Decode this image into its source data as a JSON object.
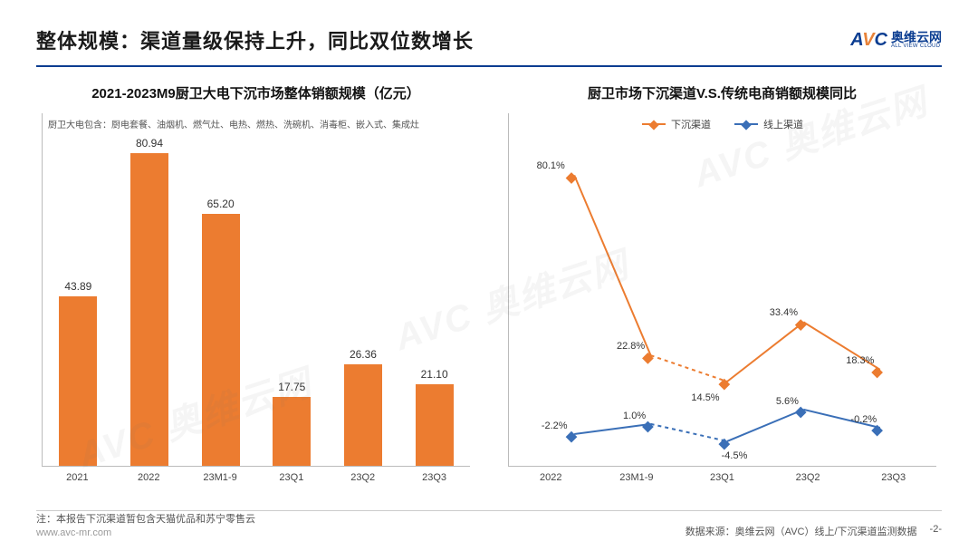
{
  "header": {
    "title": "整体规模：渠道量级保持上升，同比双位数增长",
    "logo_avc_a": "A",
    "logo_avc_v": "V",
    "logo_avc_c": "C",
    "logo_cn": "奥维云网",
    "logo_sub": "ALL VIEW CLOUD"
  },
  "bar_chart": {
    "title": "2021-2023M9厨卫大电下沉市场整体销额规模（亿元）",
    "note": "厨卫大电包含：厨电套餐、油烟机、燃气灶、电热、燃热、洗碗机、消毒柜、嵌入式、集成灶",
    "bar_color": "#ec7c30",
    "ymax": 85,
    "categories": [
      "2021",
      "2022",
      "23M1-9",
      "23Q1",
      "23Q2",
      "23Q3"
    ],
    "values": [
      43.89,
      80.94,
      65.2,
      17.75,
      26.36,
      21.1
    ],
    "labels": [
      "43.89",
      "80.94",
      "65.20",
      "17.75",
      "26.36",
      "21.10"
    ]
  },
  "line_chart": {
    "title": "厨卫市场下沉渠道V.S.传统电商销额规模同比",
    "categories": [
      "2022",
      "23M1-9",
      "23Q1",
      "23Q2",
      "23Q3"
    ],
    "ymin": -10,
    "ymax": 90,
    "legend": {
      "s1": "下沉渠道",
      "s2": "线上渠道"
    },
    "series": [
      {
        "name": "下沉渠道",
        "color": "#ec7c30",
        "points": [
          80.1,
          22.8,
          14.5,
          33.4,
          18.3
        ],
        "labels": [
          "80.1%",
          "22.8%",
          "14.5%",
          "33.4%",
          "18.3%"
        ],
        "label_dy": [
          -16,
          -16,
          12,
          -16,
          -16
        ],
        "label_dx": [
          -26,
          -22,
          -24,
          -22,
          -22
        ],
        "dash_segments": [
          1
        ]
      },
      {
        "name": "线上渠道",
        "color": "#3a6fb7",
        "points": [
          -2.2,
          1.0,
          -4.5,
          5.6,
          -0.2
        ],
        "labels": [
          "-2.2%",
          "1.0%",
          "-4.5%",
          "5.6%",
          "-0.2%"
        ],
        "label_dy": [
          -15,
          -15,
          10,
          -15,
          -15
        ],
        "label_dx": [
          -22,
          -18,
          8,
          -18,
          -18
        ],
        "dash_segments": [
          1
        ]
      }
    ]
  },
  "footer": {
    "note": "注：本报告下沉渠道暂包含天猫优品和苏宁零售云",
    "url": "www.avc-mr.com",
    "source": "数据来源：奥维云网（AVC）线上/下沉渠道监测数据",
    "page": "-2-"
  },
  "watermark": "AVC 奥维云网"
}
